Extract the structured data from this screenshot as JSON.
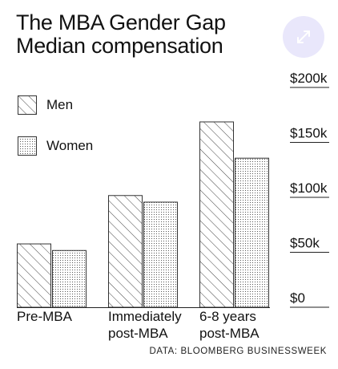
{
  "title_lines": [
    "The MBA Gender Gap",
    "Median compensation"
  ],
  "expand_button": {
    "icon": "expand-arrows-icon",
    "color": "#e9e7fb"
  },
  "source": "DATA: BLOOMBERG BUSINESSWEEK",
  "chart_data": {
    "type": "bar",
    "categories": [
      [
        "Pre-MBA"
      ],
      [
        "Immediately",
        "post-MBA"
      ],
      [
        "6-8 years",
        "post-MBA"
      ]
    ],
    "series": [
      {
        "name": "Men",
        "pattern": "diagonal-hatch",
        "values": [
          58000,
          102000,
          169000
        ]
      },
      {
        "name": "Women",
        "pattern": "dots",
        "values": [
          52000,
          96000,
          136000
        ]
      }
    ],
    "ylim": [
      0,
      200000
    ],
    "y_ticks": [
      {
        "value": 0,
        "label": "$0"
      },
      {
        "value": 50000,
        "label": "$50k"
      },
      {
        "value": 100000,
        "label": "$100k"
      },
      {
        "value": 150000,
        "label": "$150k"
      },
      {
        "value": 200000,
        "label": "$200k"
      }
    ],
    "y_axis_position": "right",
    "legend_position": "top-left",
    "grid": "right-side tick lines",
    "xlabel": "",
    "ylabel": ""
  }
}
